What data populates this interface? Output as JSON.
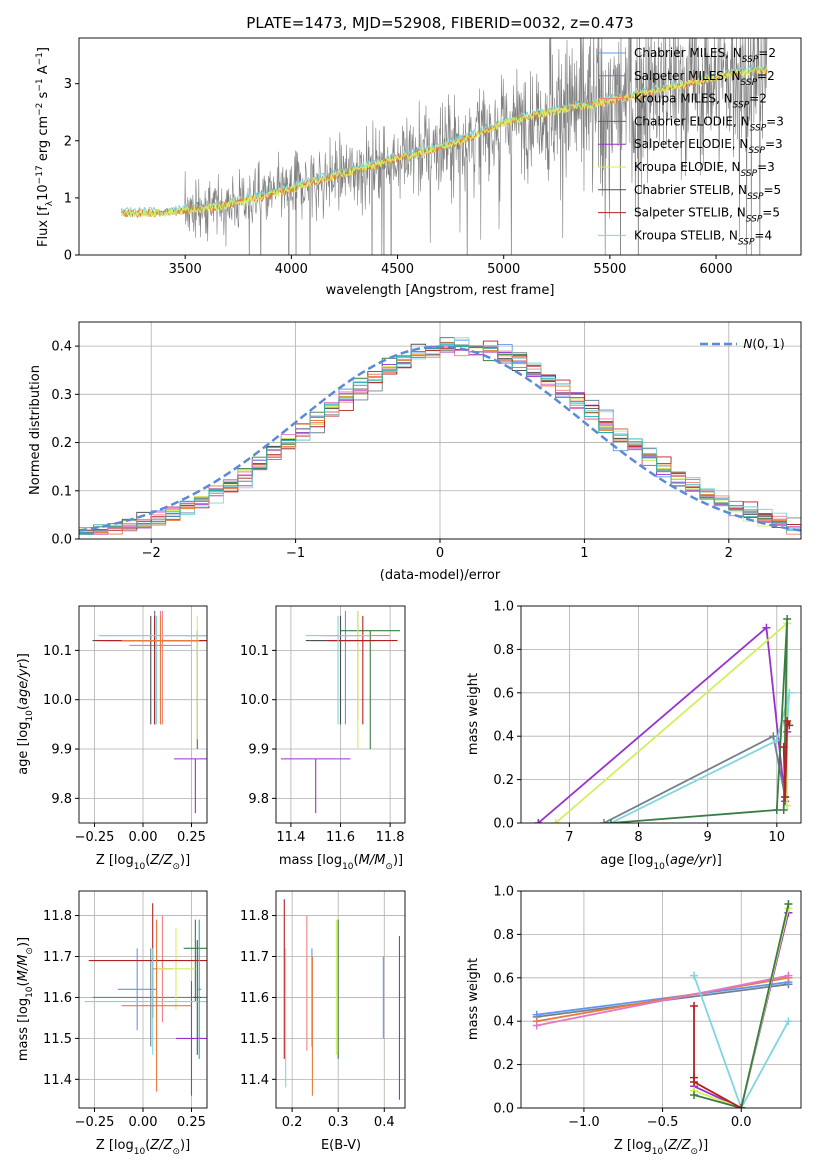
{
  "title": "PLATE=1473, MJD=52908, FIBERID=0032, z=0.473",
  "colors": {
    "data": "#808080",
    "model": [
      "#6495ED",
      "#708090",
      "#F08080",
      "#3A7D44",
      "#9932CC",
      "#D4EE5E",
      "#505050",
      "#B22222",
      "#7FD6DE",
      "#E87A3A",
      "#E377C2",
      "#20B2AA"
    ],
    "gauss": "#5B8BD6"
  },
  "spectrum": {
    "ylabel": "Flux [f$_\\lambda$ 10$^{-17}$ erg cm$^{-2}$ s$^{-1}$ A$^{-1}$]",
    "xlabel": "wavelength [Angstrom, rest frame]",
    "xlim": [
      3000,
      6400
    ],
    "ylim": [
      0,
      3.8
    ],
    "xticks": [
      3500,
      4000,
      4500,
      5000,
      5500,
      6000
    ],
    "yticks": [
      0,
      1,
      2,
      3
    ],
    "legend": [
      {
        "label": "Chabrier MILES, N",
        "sub": "SSP",
        "tail": "=2",
        "color": "#6495ED"
      },
      {
        "label": "Salpeter MILES, N",
        "sub": "SSP",
        "tail": "=2",
        "color": "#708090"
      },
      {
        "label": "Kroupa MILES, N",
        "sub": "SSP",
        "tail": "=2",
        "color": "#F08080"
      },
      {
        "label": "Chabrier ELODIE, N",
        "sub": "SSP",
        "tail": "=3",
        "color": "#3A7D44"
      },
      {
        "label": "Salpeter ELODIE, N",
        "sub": "SSP",
        "tail": "=3",
        "color": "#9932CC"
      },
      {
        "label": "Kroupa ELODIE, N",
        "sub": "SSP",
        "tail": "=3",
        "color": "#D4EE5E"
      },
      {
        "label": "Chabrier STELIB, N",
        "sub": "SSP",
        "tail": "=5",
        "color": "#505050"
      },
      {
        "label": "Salpeter STELIB, N",
        "sub": "SSP",
        "tail": "=5",
        "color": "#B22222"
      },
      {
        "label": "Kroupa STELIB, N",
        "sub": "SSP",
        "tail": "=4",
        "color": "#7FD6DE"
      }
    ]
  },
  "chart_data": [
    {
      "type": "line",
      "title": "PLATE=1473, MJD=52908, FIBERID=0032, z=0.473",
      "xlabel": "wavelength [Angstrom, rest frame]",
      "ylabel": "Flux [f_lambda 10^-17 erg cm^-2 s^-1 A^-1]",
      "xlim": [
        3000,
        6400
      ],
      "ylim": [
        0,
        3.8
      ],
      "grid": false,
      "legend": "top-right",
      "model_continuum": {
        "x": [
          3200,
          3400,
          3500,
          3600,
          3700,
          3800,
          3900,
          4000,
          4100,
          4200,
          4300,
          4400,
          4500,
          4600,
          4700,
          4800,
          4900,
          5000,
          5100,
          5200,
          5300,
          5400,
          5500,
          5600,
          5700,
          5800,
          5900,
          6000,
          6100,
          6200
        ],
        "y": [
          0.72,
          0.74,
          0.78,
          0.82,
          0.88,
          0.97,
          1.05,
          1.15,
          1.28,
          1.38,
          1.48,
          1.58,
          1.7,
          1.78,
          1.88,
          2.0,
          2.15,
          2.3,
          2.4,
          2.48,
          2.56,
          2.62,
          2.7,
          2.78,
          2.86,
          2.94,
          3.02,
          3.1,
          3.18,
          3.24
        ]
      }
    },
    {
      "type": "line",
      "xlabel": "(data-model)/error",
      "ylabel": "Normed distribution",
      "xlim": [
        -2.5,
        2.5
      ],
      "ylim": [
        0,
        0.45
      ],
      "xticks": [
        -2,
        -1,
        0,
        1,
        2
      ],
      "yticks": [
        0.0,
        0.1,
        0.2,
        0.3,
        0.4
      ],
      "grid": true,
      "legend": "top-right",
      "gauss_label": "N(0, 1)",
      "series_note": "step histograms of residuals for 12 model fits, bin width 0.1"
    },
    {
      "type": "scatter",
      "xlabel": "Z [log10(Z/Z_sun)]",
      "ylabel": "age  [log10(age/yr)]",
      "xlim": [
        -0.33,
        0.33
      ],
      "ylim": [
        9.75,
        10.19
      ],
      "xticks": [
        -0.25,
        0.0,
        0.25
      ],
      "yticks": [
        9.8,
        9.9,
        10.0,
        10.1
      ],
      "grid": true,
      "points": [
        {
          "x": 0.06,
          "y": 10.13,
          "xerr": 0.28,
          "yerr_lo": 0.18,
          "yerr_hi": 0.05,
          "color": "#6495ED"
        },
        {
          "x": 0.1,
          "y": 10.12,
          "xerr": 0.18,
          "yerr_lo": 0.17,
          "yerr_hi": 0.06,
          "color": "#F08080"
        },
        {
          "x": 0.09,
          "y": 10.11,
          "xerr": 0.16,
          "yerr_lo": 0.16,
          "yerr_hi": 0.07,
          "color": "#E377C2"
        },
        {
          "x": 0.06,
          "y": 10.12,
          "xerr": 0.25,
          "yerr_lo": 0.17,
          "yerr_hi": 0.06,
          "color": "#708090"
        },
        {
          "x": 0.28,
          "y": 10.13,
          "xerr": 0.06,
          "yerr_lo": 0.23,
          "yerr_hi": 0.01,
          "color": "#3A7D44"
        },
        {
          "x": 0.27,
          "y": 9.88,
          "xerr": 0.11,
          "yerr_lo": 0.11,
          "yerr_hi": 0.0,
          "color": "#9932CC"
        },
        {
          "x": 0.28,
          "y": 10.12,
          "xerr": 0.04,
          "yerr_lo": 0.2,
          "yerr_hi": 0.05,
          "color": "#D4EE5E"
        },
        {
          "x": 0.04,
          "y": 10.12,
          "xerr": 0.3,
          "yerr_lo": 0.17,
          "yerr_hi": 0.05,
          "color": "#505050"
        },
        {
          "x": 0.06,
          "y": 10.12,
          "xerr": 0.3,
          "yerr_lo": 0.17,
          "yerr_hi": 0.05,
          "color": "#B22222"
        },
        {
          "x": 0.07,
          "y": 10.13,
          "xerr": 0.3,
          "yerr_lo": 0.18,
          "yerr_hi": 0.04,
          "color": "#7FD6DE"
        },
        {
          "x": 0.09,
          "y": 10.12,
          "xerr": 0.2,
          "yerr_lo": 0.17,
          "yerr_hi": 0.05,
          "color": "#E87A3A"
        }
      ]
    },
    {
      "type": "scatter",
      "xlabel": "mass [log10(M/M_sun)]",
      "ylabel": "",
      "xlim": [
        11.34,
        11.86
      ],
      "ylim": [
        9.75,
        10.19
      ],
      "xticks": [
        11.4,
        11.6,
        11.8
      ],
      "yticks": [
        9.8,
        9.9,
        10.0,
        10.1
      ],
      "grid": true,
      "points": [
        {
          "x": 11.62,
          "y": 10.13,
          "xerr": 0.1,
          "yerr_lo": 0.18,
          "yerr_hi": 0.05,
          "color": "#6495ED"
        },
        {
          "x": 11.6,
          "y": 10.12,
          "xerr": 0.12,
          "yerr_lo": 0.17,
          "yerr_hi": 0.05,
          "color": "#708090"
        },
        {
          "x": 11.67,
          "y": 10.13,
          "xerr": 0.13,
          "yerr_lo": 0.17,
          "yerr_hi": 0.05,
          "color": "#F08080"
        },
        {
          "x": 11.72,
          "y": 10.14,
          "xerr": 0.12,
          "yerr_lo": 0.24,
          "yerr_hi": 0.0,
          "color": "#3A7D44"
        },
        {
          "x": 11.5,
          "y": 9.88,
          "xerr": 0.14,
          "yerr_lo": 0.11,
          "yerr_hi": 0.0,
          "color": "#9932CC"
        },
        {
          "x": 11.67,
          "y": 10.12,
          "xerr": 0.1,
          "yerr_lo": 0.22,
          "yerr_hi": 0.06,
          "color": "#D4EE5E"
        },
        {
          "x": 11.6,
          "y": 10.12,
          "xerr": 0.14,
          "yerr_lo": 0.17,
          "yerr_hi": 0.05,
          "color": "#505050"
        },
        {
          "x": 11.69,
          "y": 10.12,
          "xerr": 0.14,
          "yerr_lo": 0.17,
          "yerr_hi": 0.05,
          "color": "#B22222"
        },
        {
          "x": 11.59,
          "y": 10.13,
          "xerr": 0.13,
          "yerr_lo": 0.18,
          "yerr_hi": 0.04,
          "color": "#7FD6DE"
        }
      ]
    },
    {
      "type": "line",
      "xlabel": "age  [log10(age/yr)]",
      "ylabel": "mass weight",
      "xlim": [
        6.3,
        10.35
      ],
      "ylim": [
        0,
        1.0
      ],
      "xticks": [
        7,
        8,
        9,
        10
      ],
      "yticks": [
        0.0,
        0.2,
        0.4,
        0.6,
        0.8,
        1.0
      ],
      "grid": true,
      "series": [
        {
          "color": "#9932CC",
          "x": [
            6.55,
            9.85,
            10.12,
            10.15
          ],
          "y": [
            0.0,
            0.9,
            0.1,
            0.42
          ]
        },
        {
          "color": "#D4EE5E",
          "x": [
            6.8,
            10.15,
            10.15
          ],
          "y": [
            0.0,
            0.92,
            0.08
          ]
        },
        {
          "color": "#708090",
          "x": [
            7.5,
            9.95,
            10.12,
            10.15
          ],
          "y": [
            0.0,
            0.4,
            0.12,
            0.46
          ]
        },
        {
          "color": "#7FD6DE",
          "x": [
            7.6,
            10.0,
            10.18,
            10.15
          ],
          "y": [
            0.0,
            0.38,
            0.6,
            0.45
          ]
        },
        {
          "color": "#3A7D44",
          "x": [
            7.6,
            10.0,
            10.15,
            10.1
          ],
          "y": [
            0.0,
            0.06,
            0.94,
            0.06
          ]
        },
        {
          "color": "#B22222",
          "x": [
            10.1,
            10.12,
            10.15,
            10.18
          ],
          "y": [
            0.35,
            0.12,
            0.47,
            0.45
          ]
        }
      ]
    },
    {
      "type": "scatter",
      "xlabel": "Z [log10(Z/Z_sun)]",
      "ylabel": "mass [log10(M/M_sun)]",
      "xlim": [
        -0.33,
        0.33
      ],
      "ylim": [
        11.33,
        11.86
      ],
      "xticks": [
        -0.25,
        0.0,
        0.25
      ],
      "yticks": [
        11.4,
        11.5,
        11.6,
        11.7,
        11.8
      ],
      "grid": true,
      "points": [
        {
          "x": -0.03,
          "y": 11.62,
          "xerr": 0.1,
          "yerr_lo": 0.1,
          "yerr_hi": 0.1,
          "color": "#6495ED"
        },
        {
          "x": 0.04,
          "y": 11.6,
          "xerr": 0.3,
          "yerr_lo": 0.12,
          "yerr_hi": 0.12,
          "color": "#708090"
        },
        {
          "x": 0.1,
          "y": 11.67,
          "xerr": 0.05,
          "yerr_lo": 0.13,
          "yerr_hi": 0.13,
          "color": "#F08080"
        },
        {
          "x": 0.27,
          "y": 11.72,
          "xerr": 0.06,
          "yerr_lo": 0.13,
          "yerr_hi": 0.07,
          "color": "#3A7D44"
        },
        {
          "x": 0.25,
          "y": 11.5,
          "xerr": 0.08,
          "yerr_lo": 0.14,
          "yerr_hi": 0.14,
          "color": "#9932CC"
        },
        {
          "x": 0.17,
          "y": 11.67,
          "xerr": 0.1,
          "yerr_lo": 0.1,
          "yerr_hi": 0.1,
          "color": "#D4EE5E"
        },
        {
          "x": 0.28,
          "y": 11.6,
          "xerr": 0.02,
          "yerr_lo": 0.14,
          "yerr_hi": 0.14,
          "color": "#505050"
        },
        {
          "x": 0.05,
          "y": 11.69,
          "xerr": 0.33,
          "yerr_lo": 0.14,
          "yerr_hi": 0.14,
          "color": "#B22222"
        },
        {
          "x": 0.05,
          "y": 11.59,
          "xerr": 0.35,
          "yerr_lo": 0.13,
          "yerr_hi": 0.13,
          "color": "#7FD6DE"
        },
        {
          "x": 0.07,
          "y": 11.58,
          "xerr": 0.18,
          "yerr_lo": 0.21,
          "yerr_hi": 0.21,
          "color": "#E87A3A"
        },
        {
          "x": 0.29,
          "y": 11.62,
          "xerr": 0.01,
          "yerr_lo": 0.17,
          "yerr_hi": 0.17,
          "color": "#20B2AA"
        }
      ]
    },
    {
      "type": "scatter",
      "xlabel": "E(B-V)",
      "ylabel": "",
      "xlim": [
        0.165,
        0.445
      ],
      "ylim": [
        11.33,
        11.86
      ],
      "xticks": [
        0.2,
        0.3,
        0.4
      ],
      "yticks": [
        11.4,
        11.5,
        11.6,
        11.7,
        11.8
      ],
      "grid": true,
      "points": [
        {
          "x": 0.183,
          "y": 11.64,
          "yerr_lo": 0.19,
          "yerr_hi": 0.2,
          "color": "#B22222"
        },
        {
          "x": 0.186,
          "y": 11.55,
          "yerr_lo": 0.17,
          "yerr_hi": 0.17,
          "color": "#7FD6DE"
        },
        {
          "x": 0.232,
          "y": 11.61,
          "yerr_lo": 0.14,
          "yerr_hi": 0.19,
          "color": "#F08080"
        },
        {
          "x": 0.243,
          "y": 11.6,
          "yerr_lo": 0.12,
          "yerr_hi": 0.12,
          "color": "#6495ED"
        },
        {
          "x": 0.244,
          "y": 11.53,
          "yerr_lo": 0.17,
          "yerr_hi": 0.17,
          "color": "#E87A3A"
        },
        {
          "x": 0.296,
          "y": 11.6,
          "yerr_lo": 0.14,
          "yerr_hi": 0.19,
          "color": "#D4EE5E"
        },
        {
          "x": 0.3,
          "y": 11.62,
          "yerr_lo": 0.17,
          "yerr_hi": 0.17,
          "color": "#3A7D44"
        },
        {
          "x": 0.398,
          "y": 11.6,
          "yerr_lo": 0.1,
          "yerr_hi": 0.1,
          "color": "#6495ED"
        },
        {
          "x": 0.433,
          "y": 11.55,
          "yerr_lo": 0.2,
          "yerr_hi": 0.2,
          "color": "#9932CC"
        }
      ]
    },
    {
      "type": "line",
      "xlabel": "Z [log10(Z/Z_sun)]",
      "ylabel": "mass weight",
      "xlim": [
        -1.4,
        0.38
      ],
      "ylim": [
        0,
        1.0
      ],
      "xticks": [
        -1.0,
        -0.5,
        0.0
      ],
      "yticks": [
        0.0,
        0.2,
        0.4,
        0.6,
        0.8,
        1.0
      ],
      "grid": true,
      "series": [
        {
          "color": "#708090",
          "x": [
            -1.3,
            0.3
          ],
          "y": [
            0.42,
            0.57
          ]
        },
        {
          "color": "#6495ED",
          "x": [
            -1.3,
            0.3
          ],
          "y": [
            0.43,
            0.58
          ]
        },
        {
          "color": "#E87A3A",
          "x": [
            -1.3,
            0.3
          ],
          "y": [
            0.4,
            0.6
          ]
        },
        {
          "color": "#E377C2",
          "x": [
            -1.3,
            0.3
          ],
          "y": [
            0.38,
            0.61
          ]
        },
        {
          "color": "#7FD6DE",
          "x": [
            -0.3,
            0.0,
            0.3
          ],
          "y": [
            0.61,
            0.0,
            0.4
          ]
        },
        {
          "color": "#9932CC",
          "x": [
            -0.3,
            0.0,
            0.3
          ],
          "y": [
            0.1,
            0.0,
            0.9
          ]
        },
        {
          "color": "#D4EE5E",
          "x": [
            -0.3,
            0.0,
            0.3
          ],
          "y": [
            0.08,
            0.0,
            0.92
          ]
        },
        {
          "color": "#3A7D44",
          "x": [
            -0.3,
            0.0,
            0.3
          ],
          "y": [
            0.06,
            0.0,
            0.94
          ]
        },
        {
          "color": "#B22222",
          "x": [
            -0.3,
            -0.3,
            -0.3,
            0.0
          ],
          "y": [
            0.47,
            0.14,
            0.12,
            0.0
          ]
        }
      ]
    }
  ]
}
